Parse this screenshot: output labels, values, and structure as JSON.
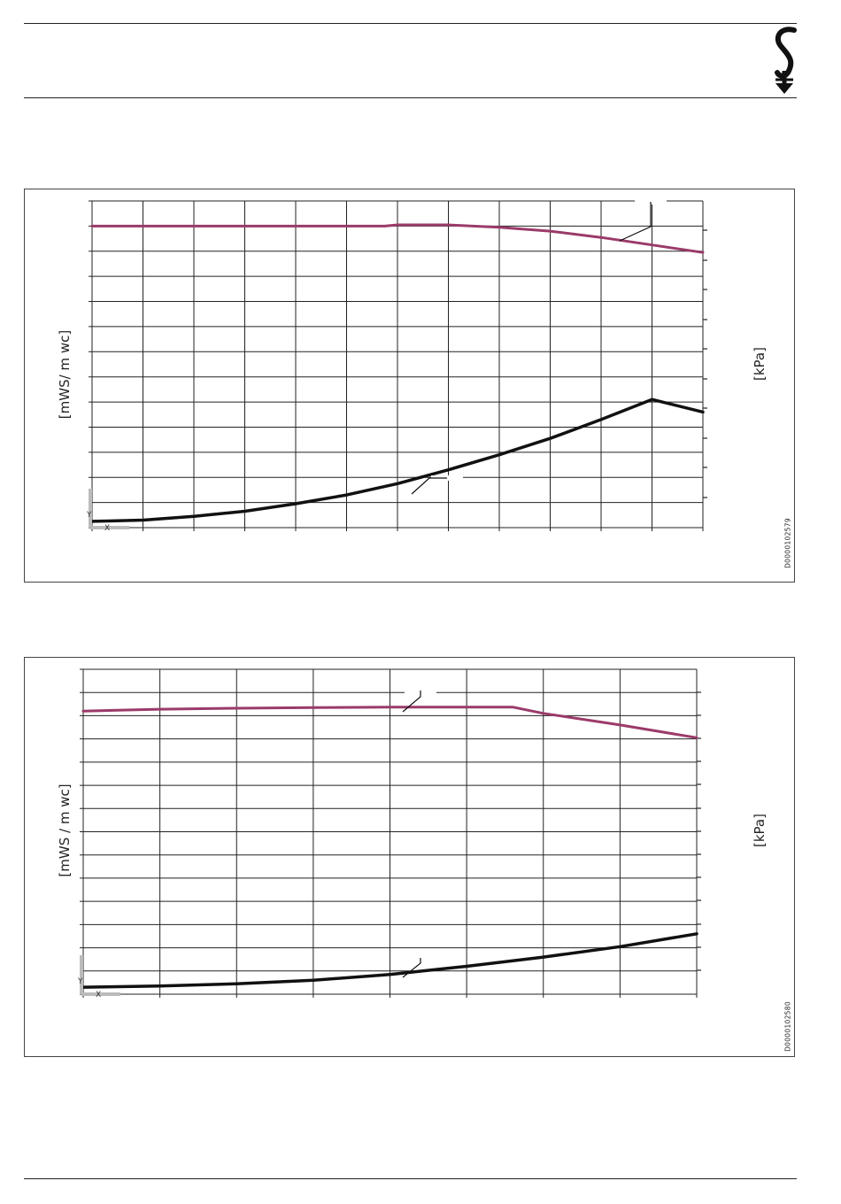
{
  "brand": {
    "logo_icon": "stiebel-s-arrow-logo"
  },
  "colors": {
    "pump_curve": "#9b3a6a",
    "loss_curve": "#111111",
    "grid": "#222222",
    "marker": "#bbbbbb"
  },
  "charts": [
    {
      "left_axis_label": "[mWS/ m wc]",
      "right_axis_label": "[kPa]",
      "doc_id": "D0000102579",
      "marker_y": "Y",
      "marker_x": "X"
    },
    {
      "left_axis_label": "[mWS / m wc]",
      "right_axis_label": "[kPa]",
      "doc_id": "D0000102580",
      "marker_y": "Y",
      "marker_x": "X"
    }
  ],
  "chart_data": [
    {
      "type": "line",
      "grid": true,
      "ylabel": "[mWS/ m wc]",
      "ylabel_right": "[kPa]",
      "x_divisions": 12,
      "y_divisions": 13,
      "xlim": [
        0,
        12
      ],
      "ylim": [
        0,
        13
      ],
      "series": [
        {
          "x": [
            0,
            1,
            2,
            3,
            4,
            5,
            5.75,
            6,
            7,
            8,
            9,
            10,
            11,
            12
          ],
          "values": [
            12.0,
            12.0,
            12.0,
            12.0,
            12.0,
            12.0,
            12.0,
            12.05,
            12.05,
            11.95,
            11.8,
            11.55,
            11.25,
            10.95
          ]
        },
        {
          "x": [
            0,
            1,
            2,
            3,
            4,
            5,
            6,
            7,
            8,
            9,
            10,
            11,
            12
          ],
          "values": [
            0.25,
            0.3,
            0.45,
            0.65,
            0.95,
            1.3,
            1.75,
            2.3,
            2.9,
            3.55,
            4.3,
            5.1,
            4.6
          ]
        }
      ]
    },
    {
      "type": "line",
      "grid": true,
      "ylabel": "[mWS / m wc]",
      "ylabel_right": "[kPa]",
      "x_divisions": 8,
      "y_divisions": 14,
      "xlim": [
        0,
        8
      ],
      "ylim": [
        0,
        14
      ],
      "series": [
        {
          "x": [
            0,
            1,
            2,
            3,
            4,
            5,
            5.6,
            6,
            7,
            8
          ],
          "values": [
            12.2,
            12.28,
            12.32,
            12.35,
            12.37,
            12.37,
            12.37,
            12.1,
            11.6,
            11.05
          ]
        },
        {
          "x": [
            0,
            1,
            2,
            3,
            4,
            5,
            6,
            7,
            8
          ],
          "values": [
            0.3,
            0.35,
            0.45,
            0.6,
            0.85,
            1.2,
            1.6,
            2.05,
            2.6
          ]
        }
      ]
    }
  ]
}
